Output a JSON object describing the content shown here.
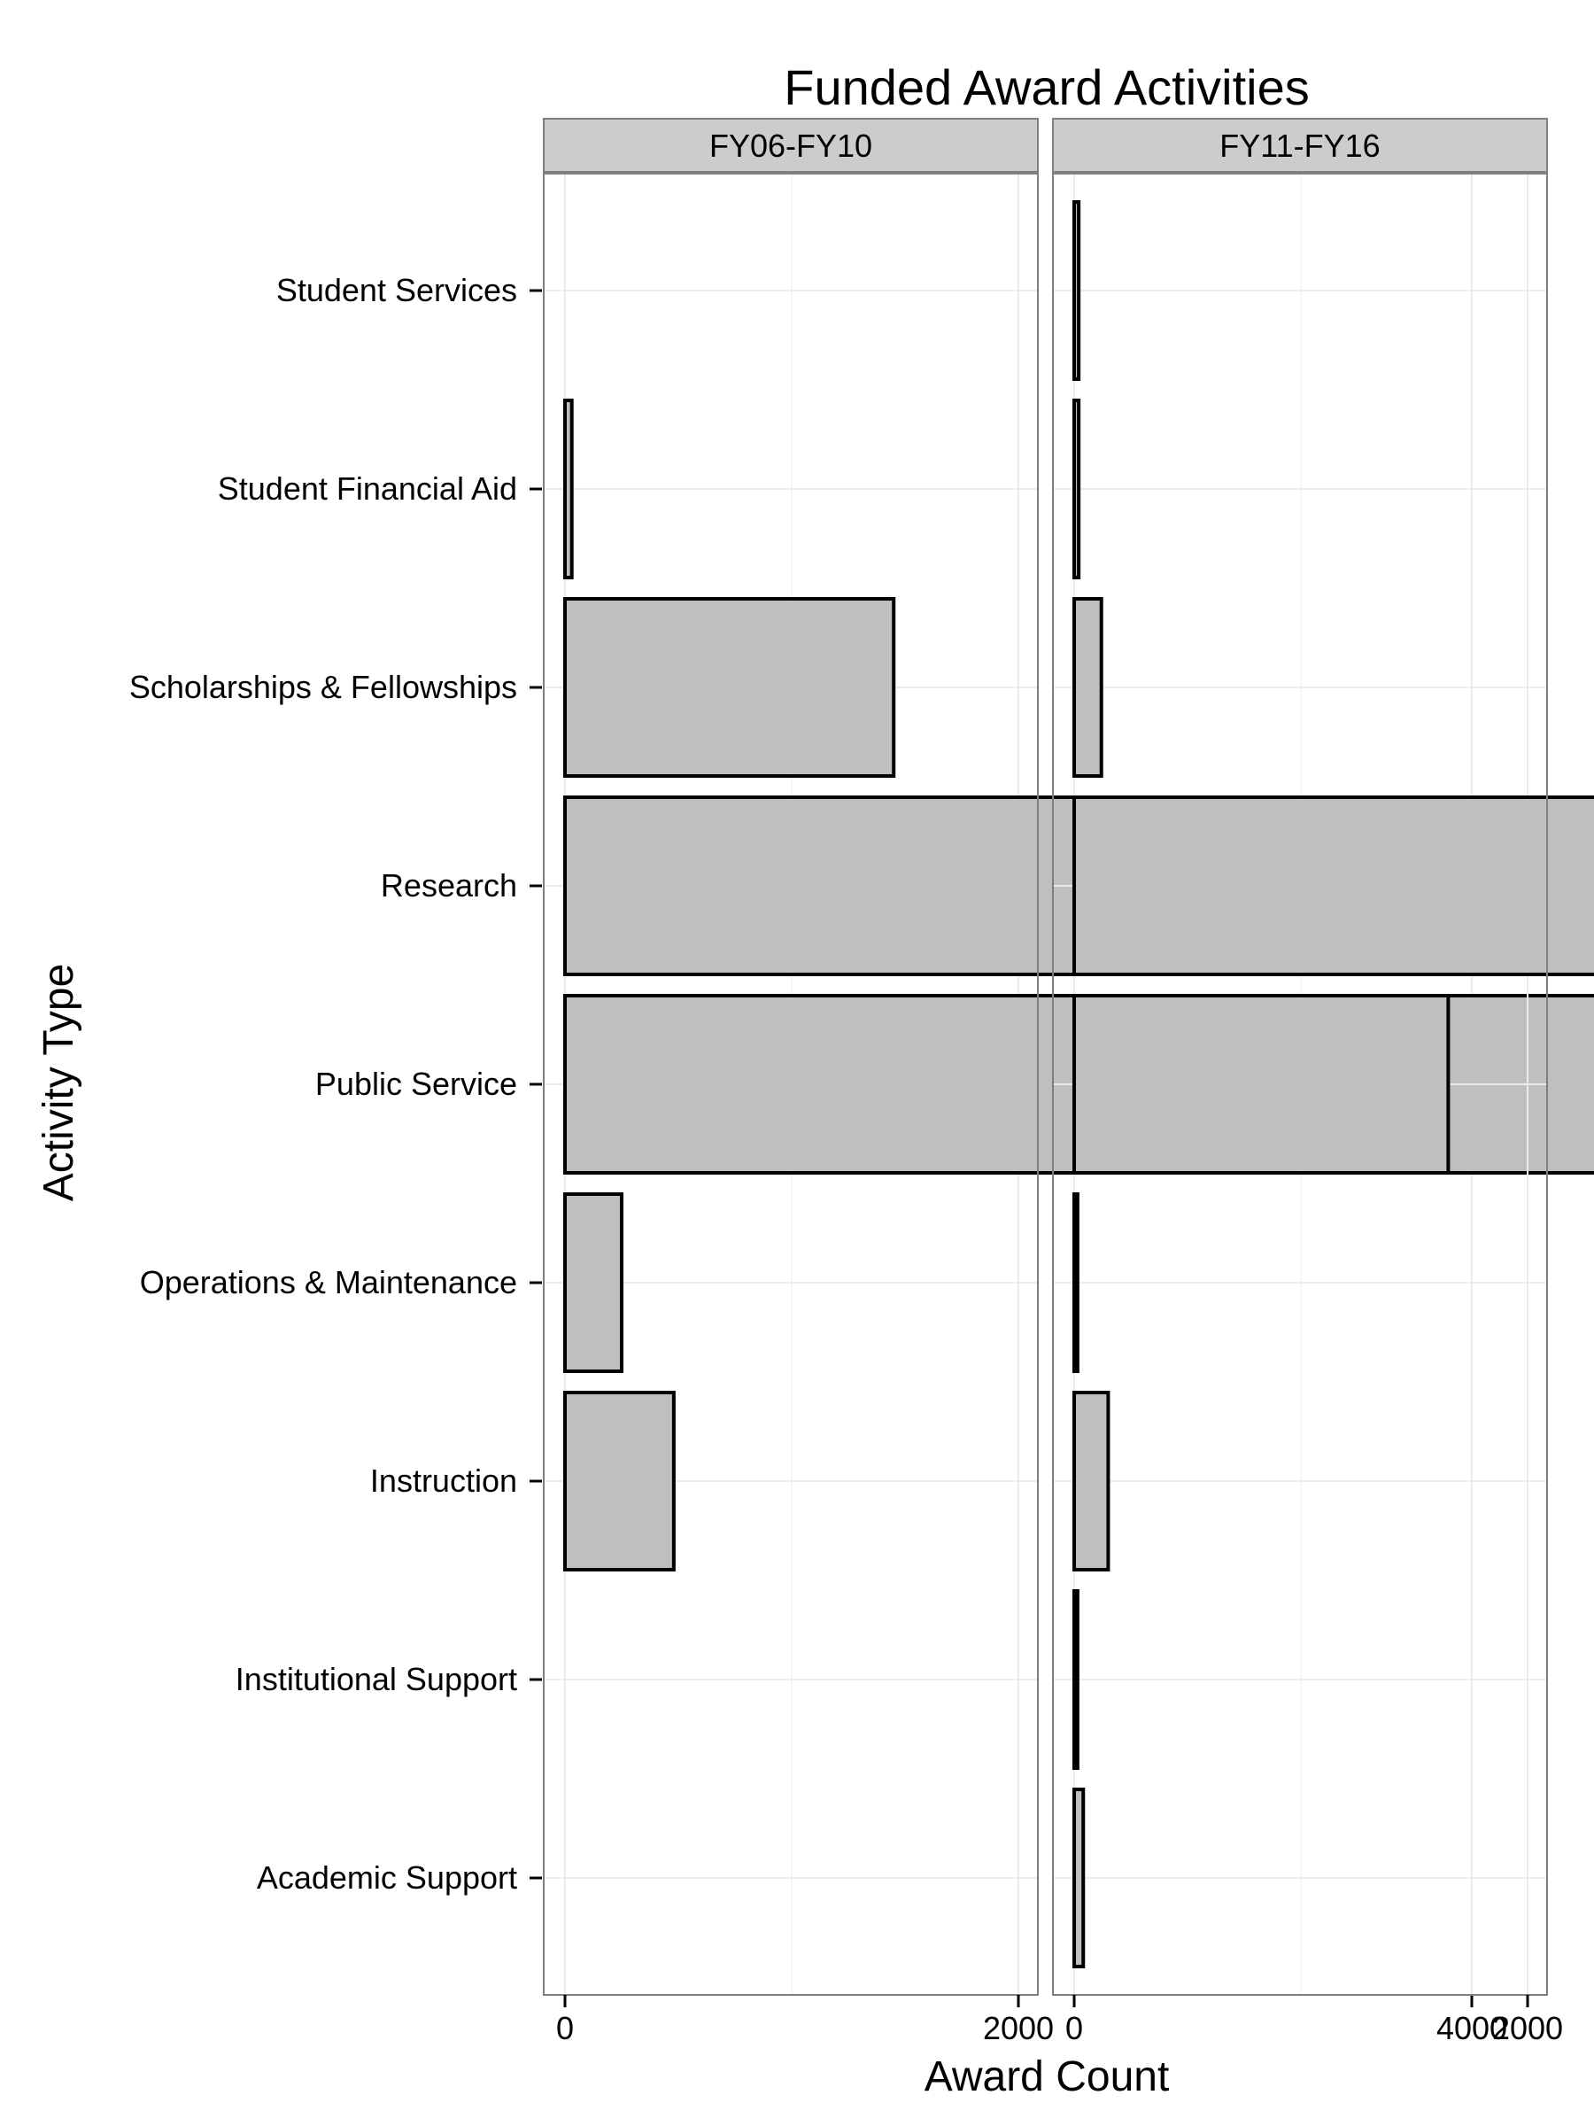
{
  "chart_data": {
    "type": "bar",
    "orientation": "horizontal",
    "title": "Funded Award Activities",
    "xlabel": "Award Count",
    "ylabel": "Activity Type",
    "xlim": [
      0,
      8000
    ],
    "xticks": [
      0,
      2000,
      4000,
      6000,
      8000
    ],
    "grid": true,
    "categories": [
      "Student Services",
      "Student Financial Aid",
      "Scholarships & Fellowships",
      "Research",
      "Public Service",
      "Operations & Maintenance",
      "Instruction",
      "Institutional Support",
      "Academic Support"
    ],
    "panels": [
      {
        "label": "FY06-FY10",
        "values": [
          0,
          30,
          1450,
          7950,
          7800,
          250,
          480,
          0,
          0
        ]
      },
      {
        "label": "FY11-FY16",
        "values": [
          20,
          20,
          120,
          6700,
          1650,
          15,
          150,
          15,
          40
        ]
      }
    ],
    "colors": {
      "bar_fill": "#bfbfbf",
      "bar_stroke": "#000000",
      "strip_fill": "#cccccc",
      "grid": "#ebebeb"
    }
  }
}
